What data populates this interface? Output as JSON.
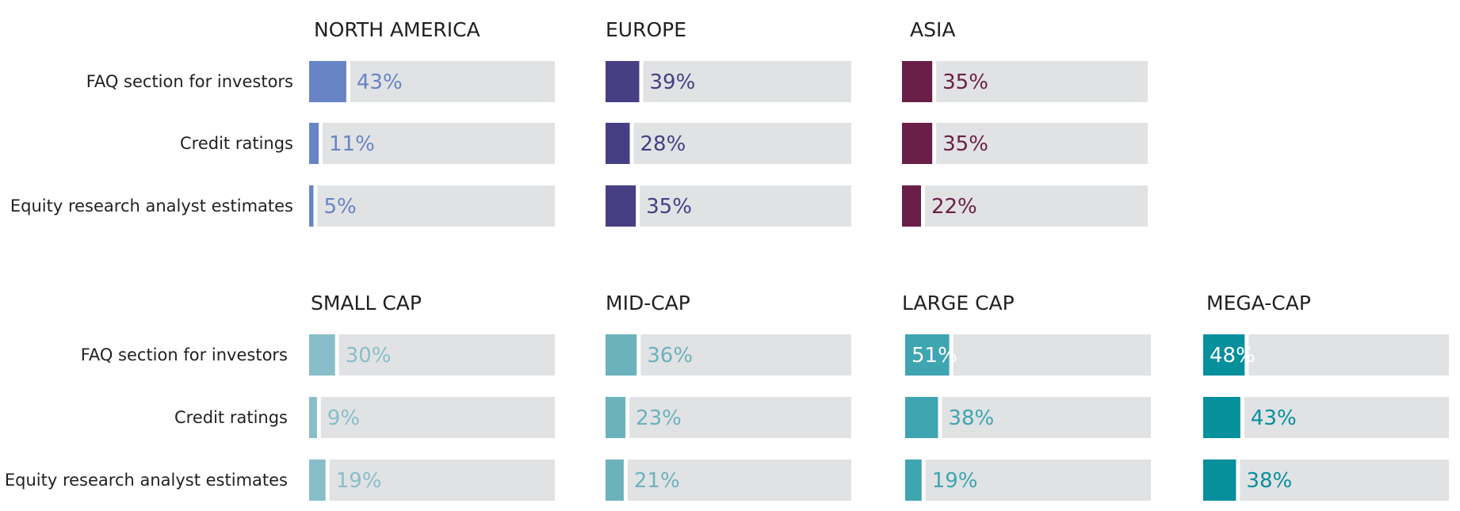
{
  "chart_data": [
    {
      "type": "bar",
      "group": "region",
      "categories": [
        "FAQ section for investors",
        "Credit ratings",
        "Equity research analyst estimates"
      ],
      "panels": [
        {
          "title": "NORTH AMERICA",
          "values": [
            43,
            11,
            5
          ],
          "color": "#6784c5",
          "labels": [
            "43%",
            "11%",
            "5%"
          ]
        },
        {
          "title": "EUROPE",
          "values": [
            39,
            28,
            35
          ],
          "color": "#463f83",
          "labels": [
            "39%",
            "28%",
            "35%"
          ]
        },
        {
          "title": "ASIA",
          "values": [
            35,
            35,
            22
          ],
          "color": "#6a1f48",
          "labels": [
            "35%",
            "35%",
            "22%"
          ]
        }
      ],
      "xlim": [
        0,
        100
      ],
      "track_color": "#e1e2e4"
    },
    {
      "type": "bar",
      "group": "market cap",
      "categories": [
        "FAQ section for investors",
        "Credit ratings",
        "Equity research analyst estimates"
      ],
      "panels": [
        {
          "title": "SMALL CAP",
          "values": [
            30,
            9,
            19
          ],
          "color": "#88bec9",
          "labels": [
            "30%",
            "9%",
            "19%"
          ]
        },
        {
          "title": "MID-CAP",
          "values": [
            36,
            23,
            21
          ],
          "color": "#6cb2bc",
          "labels": [
            "36%",
            "23%",
            "21%"
          ]
        },
        {
          "title": "LARGE CAP",
          "values": [
            51,
            38,
            19
          ],
          "color": "#3ea5b1",
          "labels": [
            "51%",
            "38%",
            "19%"
          ]
        },
        {
          "title": "MEGA-CAP",
          "values": [
            48,
            43,
            38
          ],
          "color": "#06909c",
          "labels": [
            "48%",
            "43%",
            "38%"
          ]
        }
      ],
      "xlim": [
        0,
        100
      ],
      "track_color": "#e1e2e4"
    }
  ]
}
